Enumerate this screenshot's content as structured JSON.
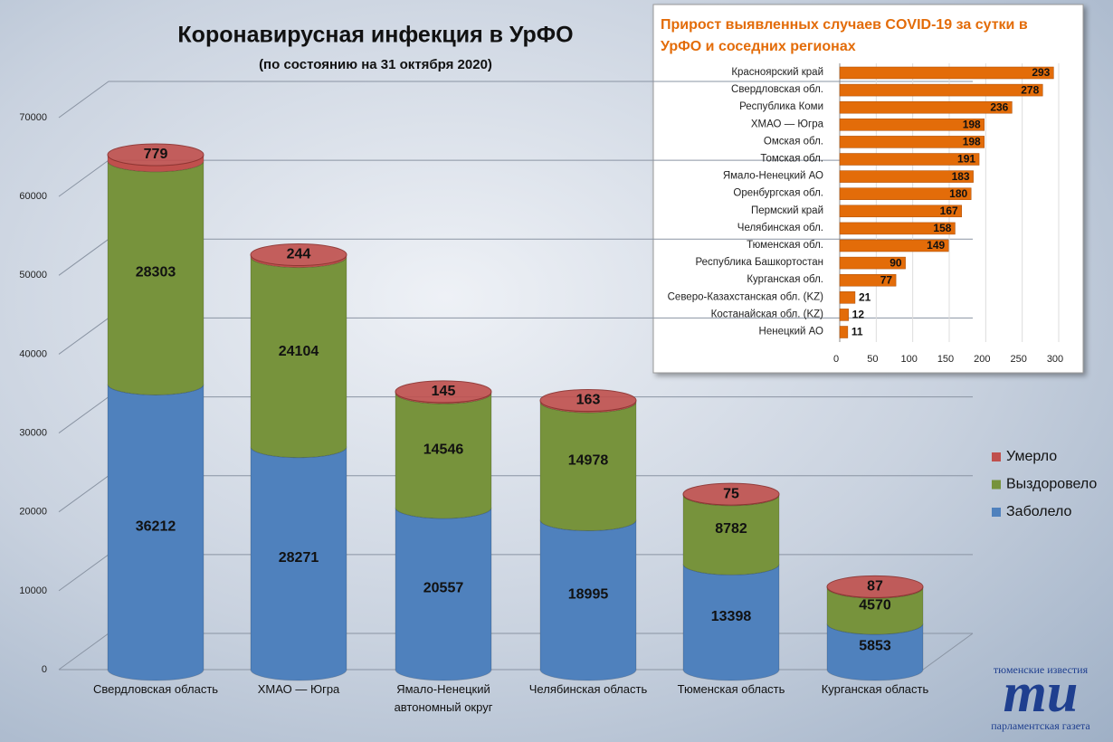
{
  "chart_data": [
    {
      "type": "bar",
      "stacked": true,
      "title": "Коронавирусная инфекция в УрФО",
      "subtitle": "(по состоянию на 31 октября 2020)",
      "categories": [
        "Свердловская область",
        "ХМАО — Югра",
        "Ямало-Ненецкий автономный округ",
        "Челябинская область",
        "Тюменская область",
        "Курганская область"
      ],
      "series": [
        {
          "name": "Заболело",
          "color": "#4f81bd",
          "values": [
            36212,
            28271,
            20557,
            18995,
            13398,
            5853
          ]
        },
        {
          "name": "Выздоровело",
          "color": "#77933c",
          "values": [
            28303,
            24104,
            14546,
            14978,
            8782,
            4570
          ]
        },
        {
          "name": "Умерло",
          "color": "#c0504d",
          "values": [
            779,
            244,
            145,
            163,
            75,
            87
          ]
        }
      ],
      "ylim": [
        0,
        70000
      ],
      "yticks": [
        0,
        10000,
        20000,
        30000,
        40000,
        50000,
        60000,
        70000
      ],
      "grid": true,
      "legend": "right"
    },
    {
      "type": "bar",
      "orientation": "horizontal",
      "title": "Прирост выявленных случаев COVID-19 за сутки в УрФО и соседних регионах",
      "categories": [
        "Красноярский край",
        "Свердловская обл.",
        "Республика Коми",
        "ХМАО — Югра",
        "Омская обл.",
        "Томская обл.",
        "Ямало-Ненецкий АО",
        "Оренбургская обл.",
        "Пермский край",
        "Челябинская обл.",
        "Тюменская обл.",
        "Республика Башкортостан",
        "Курганская обл.",
        "Северо-Казахстанская обл. (KZ)",
        "Костанайская обл. (KZ)",
        "Ненецкий АО"
      ],
      "values": [
        293,
        278,
        236,
        198,
        198,
        191,
        183,
        180,
        167,
        158,
        149,
        90,
        77,
        21,
        12,
        11
      ],
      "color": "#e36c09",
      "xlim": [
        0,
        300
      ],
      "xticks": [
        0,
        50,
        100,
        150,
        200,
        250,
        300
      ],
      "grid": true
    }
  ],
  "logo": {
    "top": "тюменские известия",
    "mark": "ти",
    "bottom": "парламентская газета"
  }
}
